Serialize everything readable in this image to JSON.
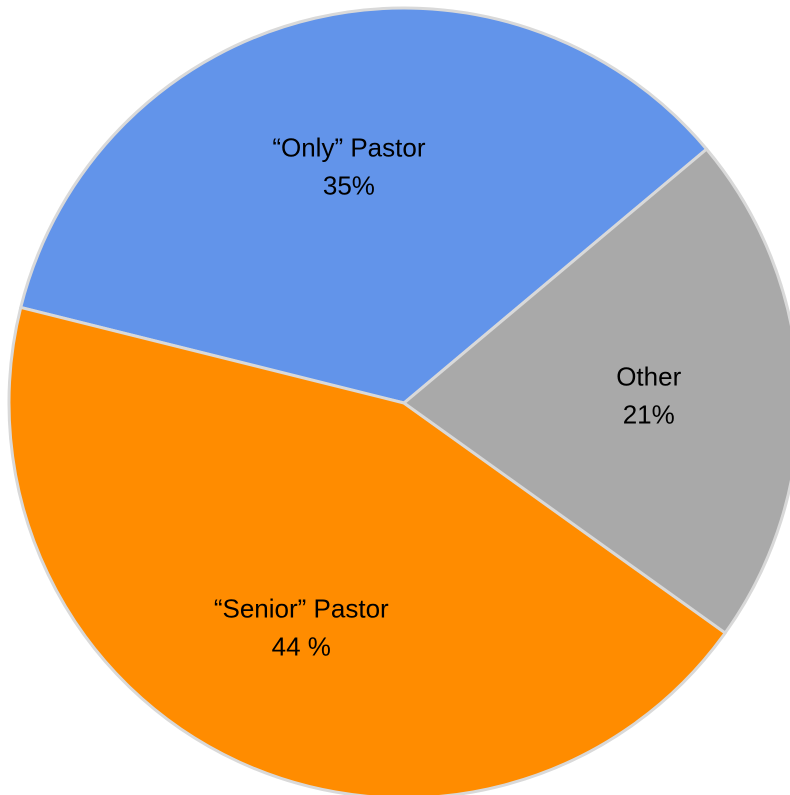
{
  "chart_data": {
    "type": "pie",
    "title": "",
    "start_angle_deg": 40,
    "direction": "counterclockwise",
    "border_color": "#d9d9d9",
    "slices": [
      {
        "name": "“Only” Pastor",
        "value": 35,
        "value_label": "35%",
        "color": "#6294ea"
      },
      {
        "name": "“Senior” Pastor",
        "value": 44,
        "value_label": "44 %",
        "color": "#ff8c00"
      },
      {
        "name": "Other",
        "value": 21,
        "value_label": "21%",
        "color": "#a9a9a9"
      }
    ]
  }
}
